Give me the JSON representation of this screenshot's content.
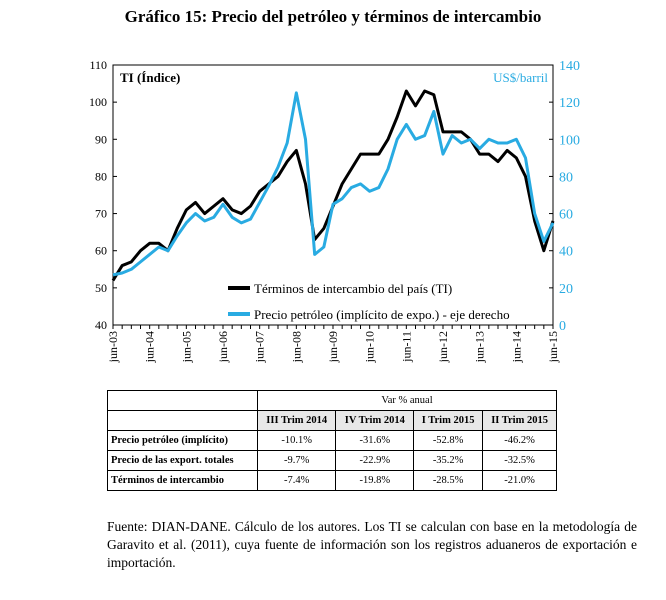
{
  "chart_data": {
    "type": "line",
    "title": "Gráfico 15: Precio del petróleo y términos de intercambio",
    "y_label": "TI (Índice)",
    "y2_label": "US$/barril",
    "categories": [
      "jun-03",
      null,
      null,
      null,
      "jun-04",
      null,
      null,
      null,
      "jun-05",
      null,
      null,
      null,
      "jun-06",
      null,
      null,
      null,
      "jun-07",
      null,
      null,
      null,
      "jun-08",
      null,
      null,
      null,
      "jun-09",
      null,
      null,
      null,
      "jun-10",
      null,
      null,
      null,
      "jun-11",
      null,
      null,
      null,
      "jun-12",
      null,
      null,
      null,
      "jun-13",
      null,
      null,
      null,
      "jun-14",
      null,
      null,
      null,
      "jun-15"
    ],
    "series": [
      {
        "name": "Términos de intercambio del país (TI)",
        "color": "#000000",
        "axis": "y",
        "values": [
          52,
          56,
          57,
          60,
          62,
          62,
          60,
          66,
          71,
          73,
          70,
          72,
          74,
          71,
          70,
          72,
          76,
          78,
          80,
          84,
          87,
          78,
          63,
          66,
          72,
          78,
          82,
          86,
          86,
          86,
          90,
          96,
          103,
          99,
          103,
          102,
          92,
          92,
          92,
          90,
          86,
          86,
          84,
          87,
          85,
          80,
          68,
          60,
          68
        ]
      },
      {
        "name": "Precio petróleo (implícito de expo.) - eje derecho",
        "color": "#29abe2",
        "axis": "y2",
        "values": [
          27,
          28,
          30,
          34,
          38,
          42,
          40,
          48,
          55,
          60,
          56,
          58,
          65,
          58,
          55,
          57,
          66,
          75,
          85,
          98,
          125,
          100,
          38,
          42,
          65,
          68,
          74,
          76,
          72,
          74,
          84,
          100,
          108,
          100,
          102,
          115,
          92,
          102,
          98,
          100,
          95,
          100,
          98,
          98,
          100,
          90,
          60,
          45,
          55
        ]
      }
    ],
    "ylim": [
      40,
      110
    ],
    "yticks": [
      40,
      50,
      60,
      70,
      80,
      90,
      100,
      110
    ],
    "y2lim": [
      0,
      140
    ],
    "y2ticks": [
      0,
      20,
      40,
      60,
      80,
      100,
      120,
      140
    ],
    "legend": "bottom"
  },
  "table": {
    "caption": "Var % anual",
    "columns": [
      "III Trim 2014",
      "IV Trim 2014",
      "I Trim 2015",
      "II Trim 2015"
    ],
    "rows": [
      [
        "Precio petróleo (implícito)",
        "-10.1%",
        "-31.6%",
        "-52.8%",
        "-46.2%"
      ],
      [
        "Precio de las export. totales",
        "-9.7%",
        "-22.9%",
        "-35.2%",
        "-32.5%"
      ],
      [
        "Términos de intercambio",
        "-7.4%",
        "-19.8%",
        "-28.5%",
        "-21.0%"
      ]
    ]
  },
  "source": "Fuente: DIAN-DANE. Cálculo de los autores. Los TI se calculan con base en la metodología de Garavito et al. (2011), cuya fuente de información son los registros aduaneros de exportación e importación."
}
